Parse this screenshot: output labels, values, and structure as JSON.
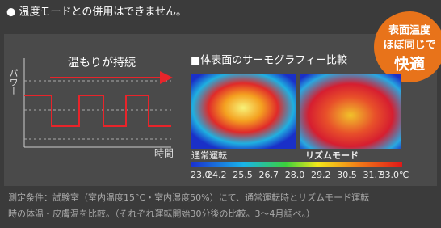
{
  "notice": "● 温度モードとの併用はできません。",
  "badge": {
    "lines": [
      "表面温度",
      "ほぼ同じで",
      "快適"
    ]
  },
  "graph": {
    "y_label": "パワー",
    "arrow_label": "温もりが持続",
    "x_label": "時間"
  },
  "thermo": {
    "title": "■体表面のサーモグラフィー比較",
    "left_label": "通常運転",
    "right_label": "リズムモード",
    "scale": [
      "23.0",
      "24.2",
      "25.5",
      "26.7",
      "28.0",
      "29.2",
      "30.5",
      "31.7",
      "33.0℃"
    ]
  },
  "footer": {
    "lines": [
      "測定条件：試験室（室内温度15°C・室内湿度50%）にて、通常運転時とリズムモード運転",
      "時の体温・皮膚温を比較。（それぞれ運転開始30分後の比較。3〜4月調べ。）"
    ]
  }
}
